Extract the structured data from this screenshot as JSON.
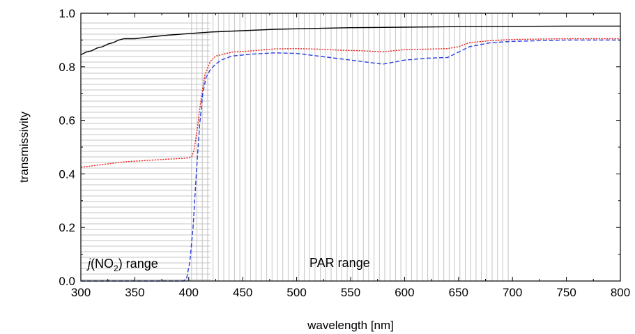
{
  "chart_data": {
    "type": "line",
    "title": "",
    "xlabel": "wavelength [nm]",
    "ylabel": "transmissivity",
    "xlim": [
      300,
      800
    ],
    "ylim": [
      0.0,
      1.0
    ],
    "xticks": [
      "300",
      "350",
      "400",
      "450",
      "500",
      "550",
      "600",
      "650",
      "700",
      "750",
      "800"
    ],
    "yticks": [
      "0.0",
      "0.2",
      "0.4",
      "0.6",
      "0.8",
      "1.0"
    ],
    "legend": "none",
    "grid": false,
    "annotations": {
      "jno2": {
        "prefix": "j",
        "open": "(NO",
        "subscript": "2",
        "close": ") range"
      },
      "par": "PAR range"
    },
    "shaded_bands": [
      {
        "from": 300,
        "to": 420,
        "band_lines": "horizontal"
      },
      {
        "from": 400,
        "to": 700,
        "band_lines": "vertical"
      }
    ],
    "series": [
      {
        "style": "solid",
        "color": "#000000",
        "x": [
          300,
          305,
          310,
          315,
          320,
          325,
          330,
          335,
          340,
          350,
          360,
          380,
          400,
          420,
          450,
          480,
          500,
          550,
          600,
          650,
          700,
          750,
          800
        ],
        "y": [
          0.845,
          0.855,
          0.86,
          0.87,
          0.875,
          0.885,
          0.89,
          0.9,
          0.905,
          0.905,
          0.91,
          0.918,
          0.924,
          0.93,
          0.935,
          0.94,
          0.942,
          0.946,
          0.948,
          0.95,
          0.951,
          0.952,
          0.952
        ]
      },
      {
        "style": "dotted",
        "color": "#e8251f",
        "x": [
          300,
          320,
          340,
          360,
          380,
          395,
          400,
          403,
          405,
          408,
          410,
          413,
          415,
          418,
          420,
          425,
          440,
          460,
          480,
          500,
          520,
          540,
          560,
          580,
          600,
          620,
          640,
          650,
          660,
          680,
          700,
          750,
          800
        ],
        "y": [
          0.425,
          0.435,
          0.445,
          0.45,
          0.455,
          0.458,
          0.46,
          0.465,
          0.49,
          0.57,
          0.64,
          0.72,
          0.77,
          0.8,
          0.82,
          0.84,
          0.855,
          0.86,
          0.867,
          0.868,
          0.866,
          0.862,
          0.86,
          0.856,
          0.864,
          0.866,
          0.868,
          0.875,
          0.89,
          0.898,
          0.902,
          0.905,
          0.905
        ]
      },
      {
        "style": "dashed",
        "color": "#2b3fe0",
        "x": [
          300,
          350,
          395,
          398,
          401,
          404,
          407,
          410,
          413,
          416,
          420,
          425,
          430,
          440,
          460,
          480,
          500,
          520,
          540,
          560,
          580,
          600,
          620,
          640,
          650,
          660,
          680,
          700,
          750,
          800
        ],
        "y": [
          0.0,
          0.0,
          0.0,
          0.01,
          0.07,
          0.2,
          0.4,
          0.58,
          0.7,
          0.76,
          0.79,
          0.81,
          0.825,
          0.84,
          0.848,
          0.852,
          0.85,
          0.84,
          0.83,
          0.82,
          0.81,
          0.825,
          0.832,
          0.835,
          0.855,
          0.875,
          0.89,
          0.895,
          0.9,
          0.9
        ]
      }
    ]
  }
}
